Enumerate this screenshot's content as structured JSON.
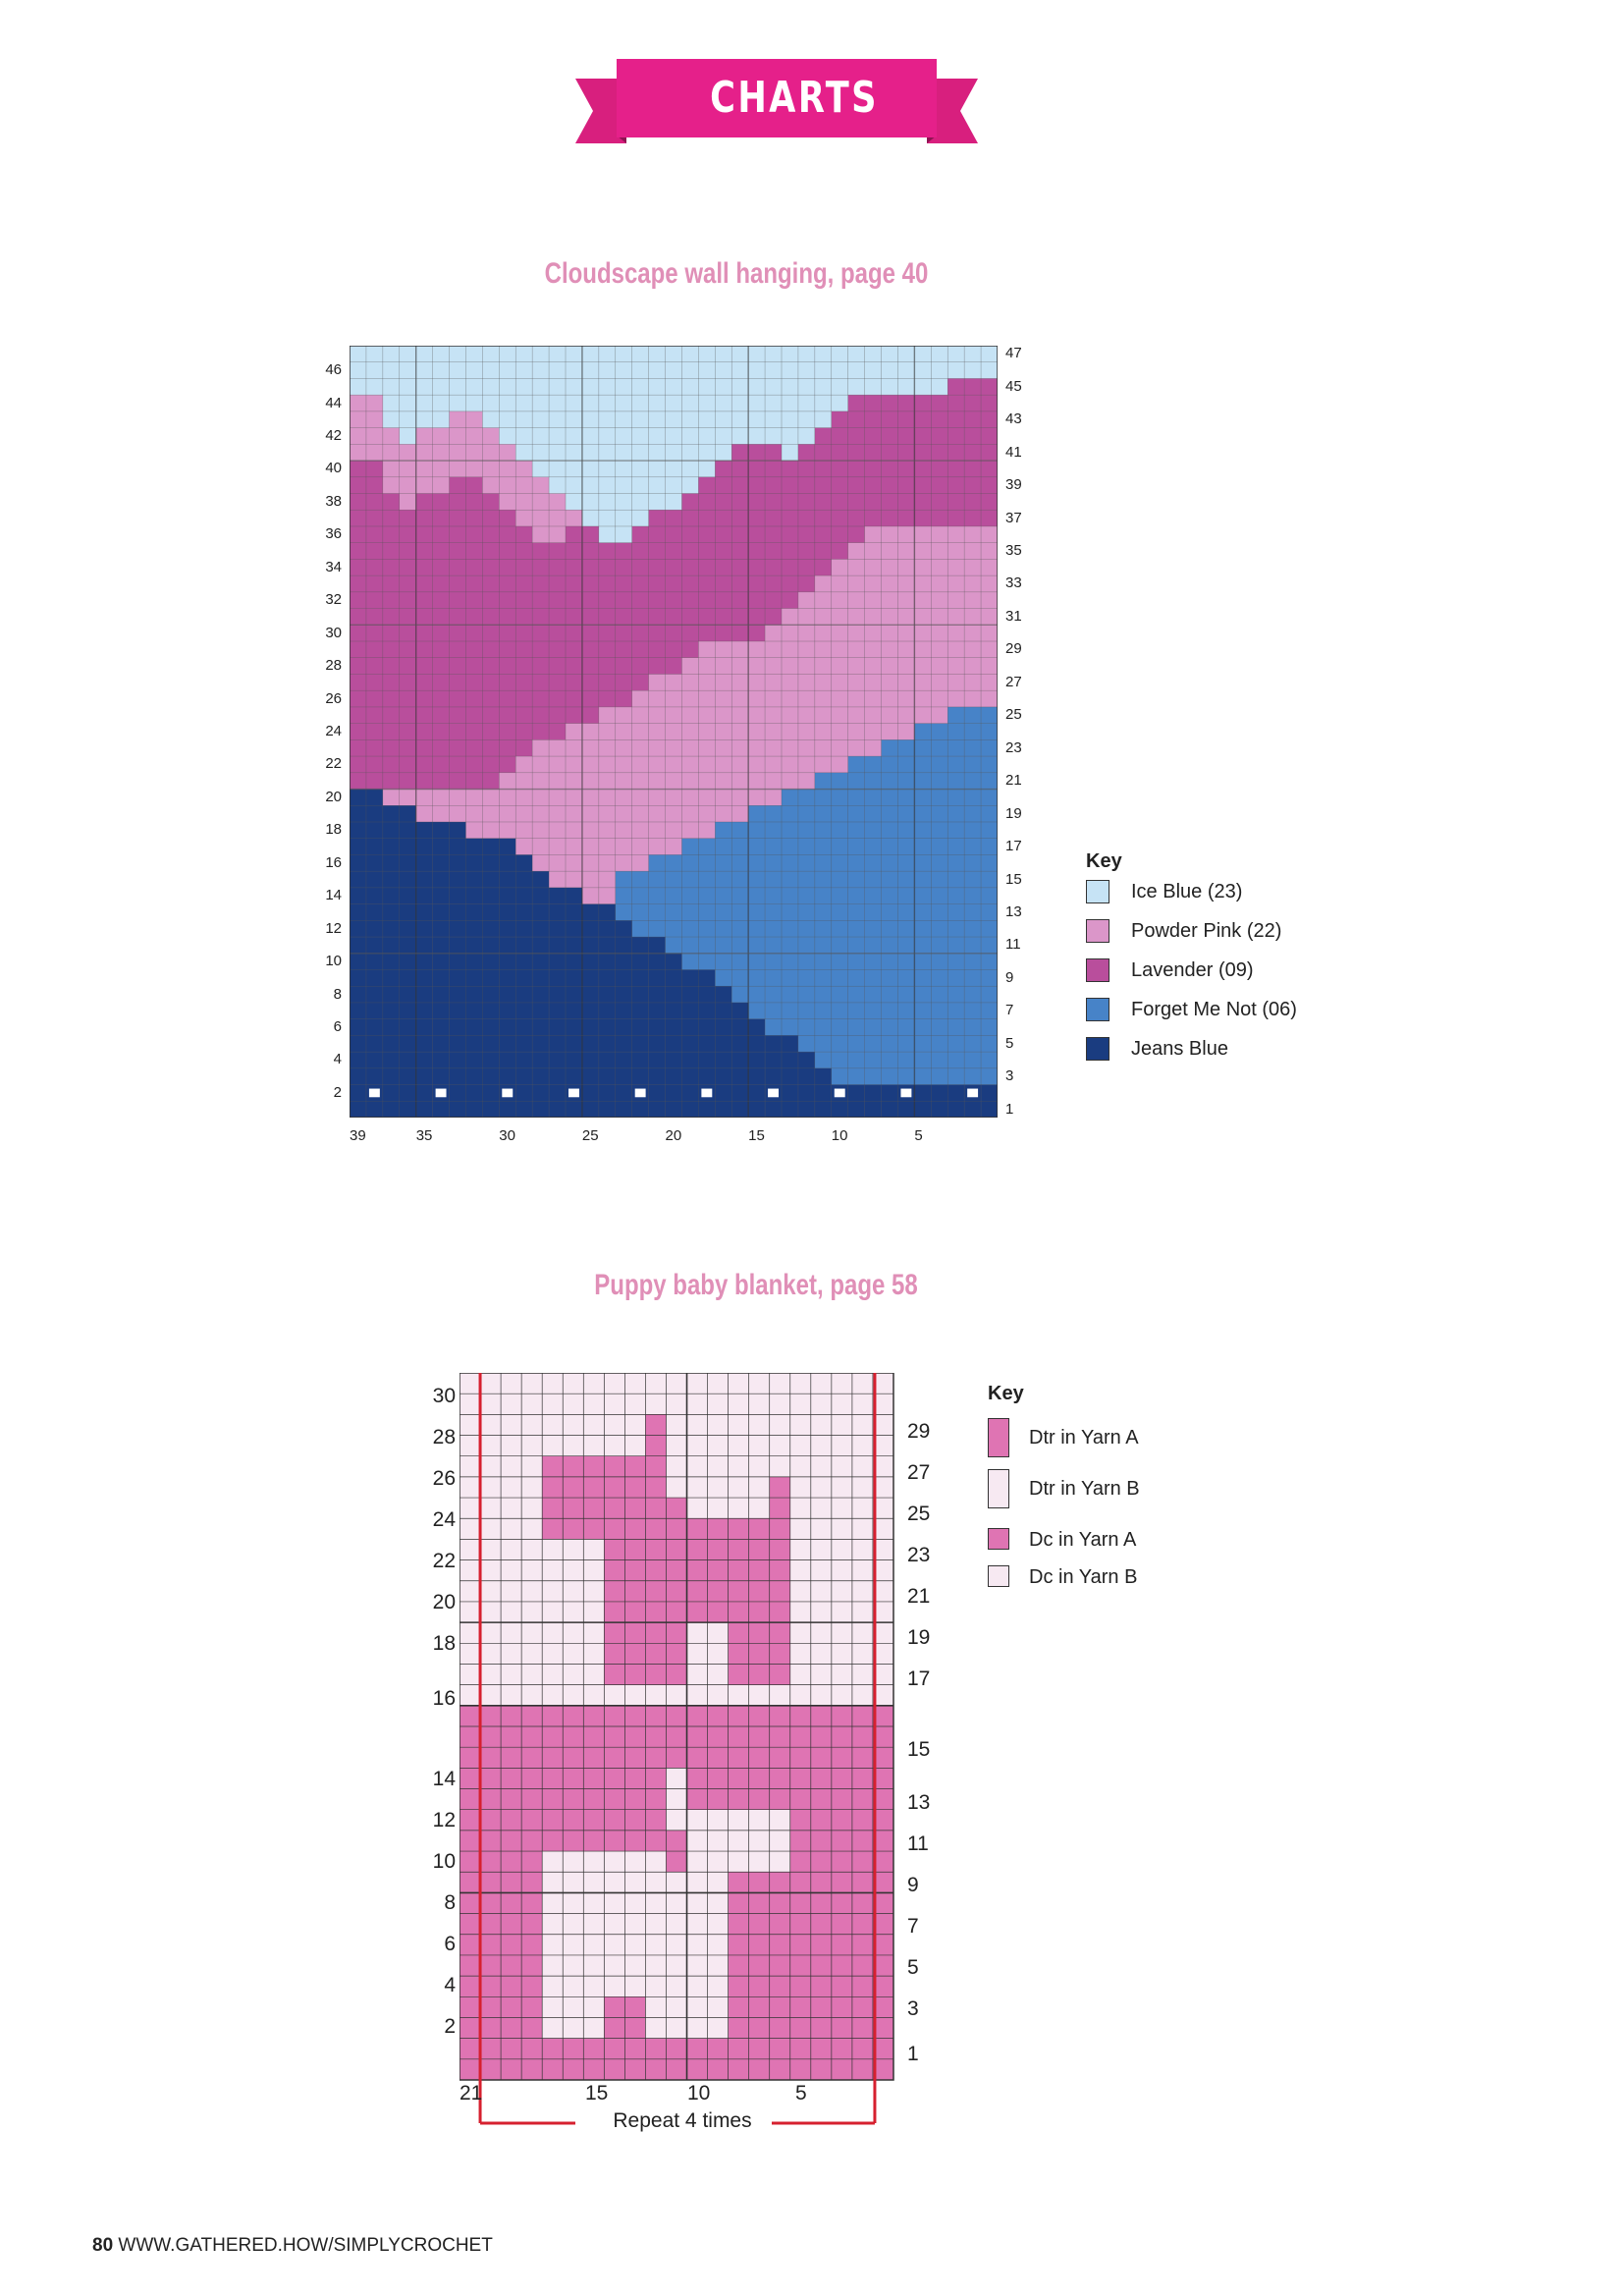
{
  "header": {
    "title": "CHARTS"
  },
  "cloudscape": {
    "title": "Cloudscape wall hanging, page 40",
    "left_row_labels": [
      "46",
      "44",
      "42",
      "40",
      "38",
      "36",
      "34",
      "32",
      "30",
      "28",
      "26",
      "24",
      "22",
      "20",
      "18",
      "16",
      "14",
      "12",
      "10",
      "8",
      "6",
      "4",
      "2"
    ],
    "right_row_labels": [
      "47",
      "45",
      "43",
      "41",
      "39",
      "37",
      "35",
      "33",
      "31",
      "29",
      "27",
      "25",
      "23",
      "21",
      "19",
      "17",
      "15",
      "13",
      "11",
      "9",
      "7",
      "5",
      "3",
      "1"
    ],
    "col_labels": [
      "39",
      "35",
      "30",
      "25",
      "20",
      "15",
      "10",
      "5"
    ],
    "key": {
      "title": "Key",
      "items": [
        {
          "label": "Ice Blue (23)",
          "color": "#c6e3f5"
        },
        {
          "label": "Powder Pink (22)",
          "color": "#db96c9"
        },
        {
          "label": "Lavender (09)",
          "color": "#b94e9c"
        },
        {
          "label": "Forget Me Not (06)",
          "color": "#4783c8"
        },
        {
          "label": "Jeans Blue",
          "color": "#1a3c80"
        }
      ]
    }
  },
  "puppy": {
    "title": "Puppy baby blanket, page 58",
    "left_row_labels": [
      "30",
      "28",
      "26",
      "24",
      "22",
      "20",
      "18",
      "16",
      "14",
      "12",
      "10",
      "8",
      "6",
      "4",
      "2"
    ],
    "right_row_labels": [
      "29",
      "27",
      "25",
      "23",
      "21",
      "19",
      "17",
      "15",
      "13",
      "11",
      "9",
      "7",
      "5",
      "3",
      "1"
    ],
    "col_labels": [
      "21",
      "15",
      "10",
      "5"
    ],
    "repeat_label": "Repeat 4 times",
    "key": {
      "title": "Key",
      "items": [
        {
          "label": "Dtr in Yarn A",
          "color": "#df74b3"
        },
        {
          "label": "Dtr in Yarn B",
          "color": "#f7e9f2"
        },
        {
          "label": "Dc in Yarn A",
          "color": "#df74b3"
        },
        {
          "label": "Dc in Yarn B",
          "color": "#f7e9f2"
        }
      ]
    }
  },
  "footer": {
    "page_number": "80",
    "url": "WWW.GATHERED.HOW/SIMPLYCROCHET"
  }
}
